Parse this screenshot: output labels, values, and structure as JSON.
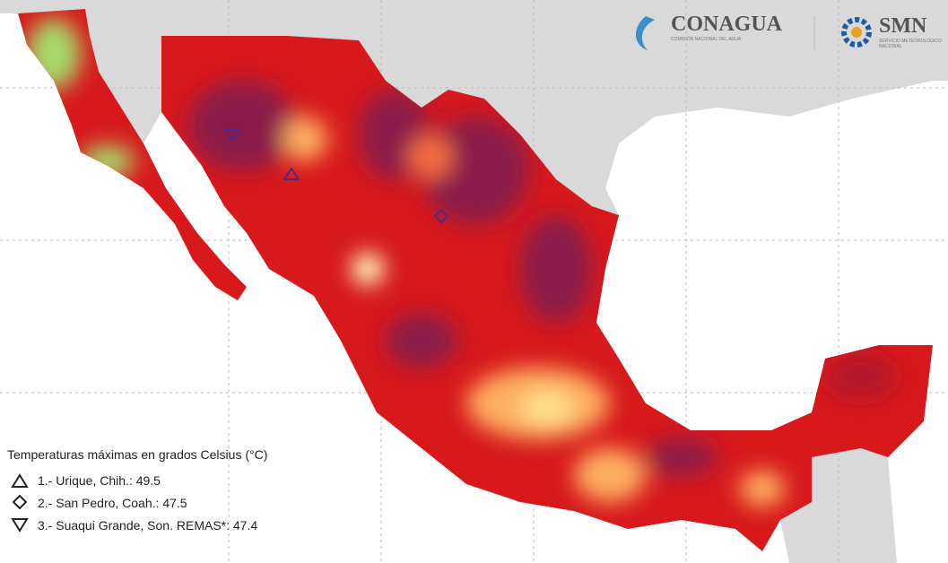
{
  "header": {
    "logo_1": {
      "name": "CONAGUA",
      "subtitle": "COMISIÓN NACIONAL DEL AGUA"
    },
    "logo_2": {
      "name": "SMN",
      "subtitle": "SERVICIO METEOROLÓGICO NACIONAL"
    }
  },
  "legend": {
    "title": "Temperaturas máximas en grados Celsius (°C)",
    "entries": [
      {
        "label": "1.- Urique, Chih.:",
        "value": 49.5
      },
      {
        "label": "2.- San Pedro, Coah.:",
        "value": 47.5
      },
      {
        "label": "3.- Suaqui Grande, Son. REMAS*:",
        "value": 47.4
      }
    ]
  }
}
